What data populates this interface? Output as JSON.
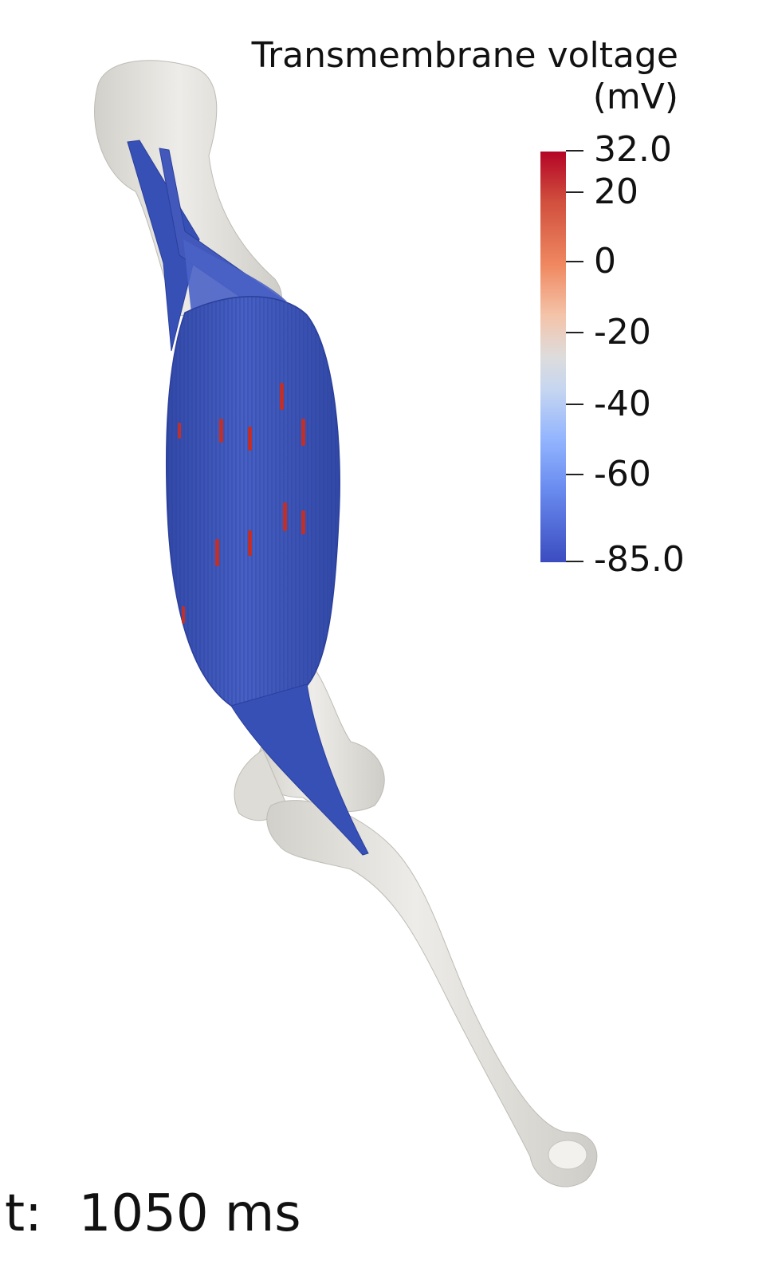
{
  "legend": {
    "title_line1": "Transmembrane voltage",
    "title_line2": "(mV)",
    "max_label": "32.0",
    "min_label": "-85.0",
    "tick_labels": [
      "20",
      "0",
      "-20",
      "-40",
      "-60"
    ],
    "range": [
      -85.0,
      32.0
    ],
    "colormap_colors": [
      "#b40426",
      "#f08a62",
      "#dddcdc",
      "#93b5fe",
      "#3b4cc0"
    ]
  },
  "time": {
    "label": "t:",
    "value": "1050 ms"
  },
  "scene": {
    "bone_color": "#e8e6e1",
    "muscle_color": "#3b54b4",
    "tendon_color": "#2f47b2",
    "activation_color": "#c0302a"
  }
}
